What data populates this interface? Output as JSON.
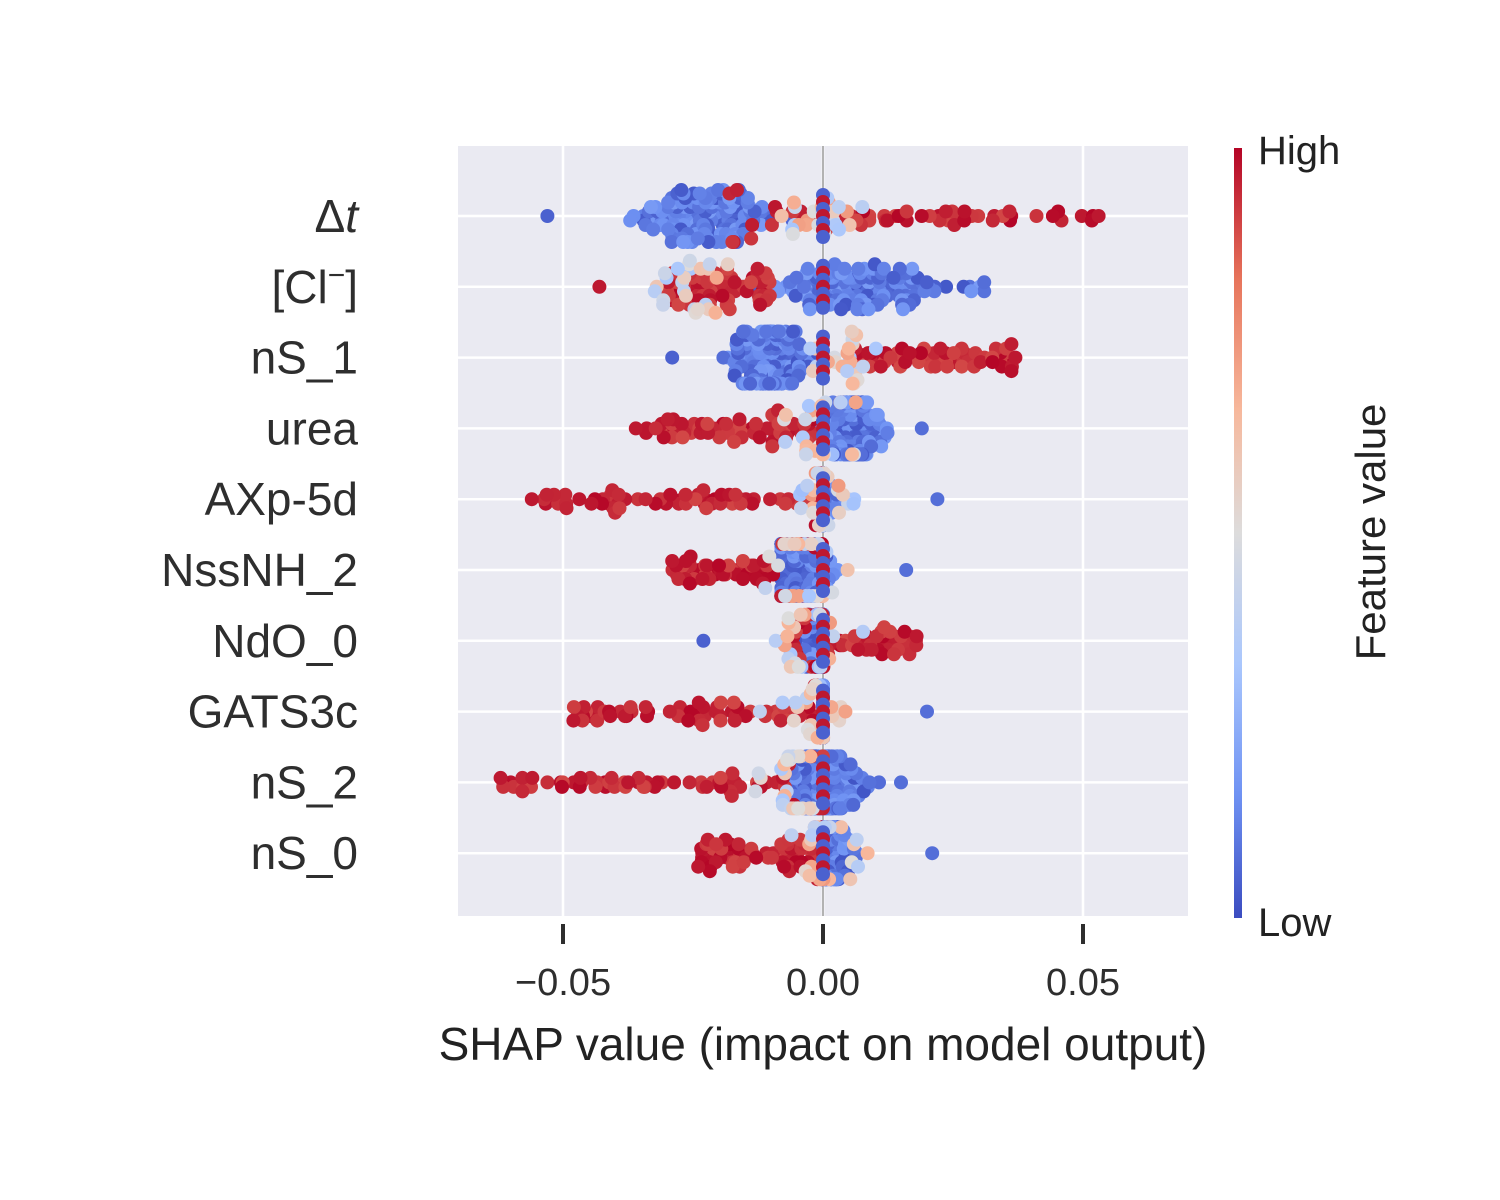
{
  "chart_data": {
    "type": "scatter",
    "subtype": "shap-beeswarm",
    "xlabel": "SHAP value (impact on model output)",
    "xlim": [
      -0.07,
      0.07
    ],
    "xticks": [
      -0.05,
      0.0,
      0.05
    ],
    "xtick_labels": [
      "−0.05",
      "0.00",
      "0.05"
    ],
    "grid": true,
    "features": [
      {
        "label_main": "Δ",
        "label_italic": "t",
        "label_sup": "",
        "label_end": "",
        "min": -0.053,
        "max": 0.053,
        "low_min": -0.053,
        "low_max": -0.002,
        "high_min": -0.018,
        "high_max": 0.053,
        "low_side": "left",
        "center": -0.023
      },
      {
        "label_main": "[Cl",
        "label_italic": "",
        "label_sup": "−",
        "label_end": "]",
        "min": -0.043,
        "max": 0.031,
        "low_min": -0.043,
        "low_max": 0.031,
        "high_min": -0.03,
        "high_max": -0.01,
        "low_side": "right",
        "center": 0.008
      },
      {
        "label_main": "nS_1",
        "label_italic": "",
        "label_sup": "",
        "label_end": "",
        "min": -0.029,
        "max": 0.037,
        "low_min": -0.029,
        "low_max": 0.0,
        "high_min": 0.006,
        "high_max": 0.037,
        "low_side": "left",
        "center": -0.01
      },
      {
        "label_main": "urea",
        "label_italic": "",
        "label_sup": "",
        "label_end": "",
        "min": -0.036,
        "max": 0.019,
        "low_min": -0.003,
        "low_max": 0.019,
        "high_min": -0.036,
        "high_max": 0.0,
        "low_side": "right",
        "center": 0.006
      },
      {
        "label_main": "AXp-5d",
        "label_italic": "",
        "label_sup": "",
        "label_end": "",
        "min": -0.056,
        "max": 0.022,
        "low_min": 0.0,
        "low_max": 0.022,
        "high_min": -0.056,
        "high_max": 0.0,
        "low_side": "right",
        "center": -0.005
      },
      {
        "label_main": "NssNH_2",
        "label_italic": "",
        "label_sup": "",
        "label_end": "",
        "min": -0.029,
        "max": 0.016,
        "low_min": -0.008,
        "low_max": 0.016,
        "high_min": -0.029,
        "high_max": 0.0,
        "low_side": "right",
        "center": -0.005
      },
      {
        "label_main": "NdO_0",
        "label_italic": "",
        "label_sup": "",
        "label_end": "",
        "min": -0.023,
        "max": 0.018,
        "low_min": -0.023,
        "low_max": 0.0,
        "high_min": -0.006,
        "high_max": 0.018,
        "low_side": "left",
        "center": 0.002
      },
      {
        "label_main": "GATS3c",
        "label_italic": "",
        "label_sup": "",
        "label_end": "",
        "min": -0.048,
        "max": 0.02,
        "low_min": 0.0,
        "low_max": 0.02,
        "high_min": -0.048,
        "high_max": 0.0,
        "low_side": "right",
        "center": -0.008
      },
      {
        "label_main": "nS_2",
        "label_italic": "",
        "label_sup": "",
        "label_end": "",
        "min": -0.062,
        "max": 0.015,
        "low_min": -0.01,
        "low_max": 0.015,
        "high_min": -0.062,
        "high_max": 0.0,
        "low_side": "right",
        "center": 0.0
      },
      {
        "label_main": "nS_0",
        "label_italic": "",
        "label_sup": "",
        "label_end": "",
        "min": -0.024,
        "max": 0.021,
        "low_min": 0.0,
        "low_max": 0.021,
        "high_min": -0.024,
        "high_max": 0.0,
        "low_side": "right",
        "center": 0.0
      }
    ],
    "colorbar": {
      "title": "Feature value",
      "high_label": "High",
      "low_label": "Low",
      "colors": [
        "#3b4cc0",
        "#6f92f3",
        "#aac7fd",
        "#dddcdc",
        "#f7b89c",
        "#e7745b",
        "#b40426"
      ]
    }
  },
  "colors": {
    "plot_bg": "#eaeaf2",
    "grid": "#ffffff",
    "low": "#3b4cc0",
    "high": "#b40426"
  }
}
